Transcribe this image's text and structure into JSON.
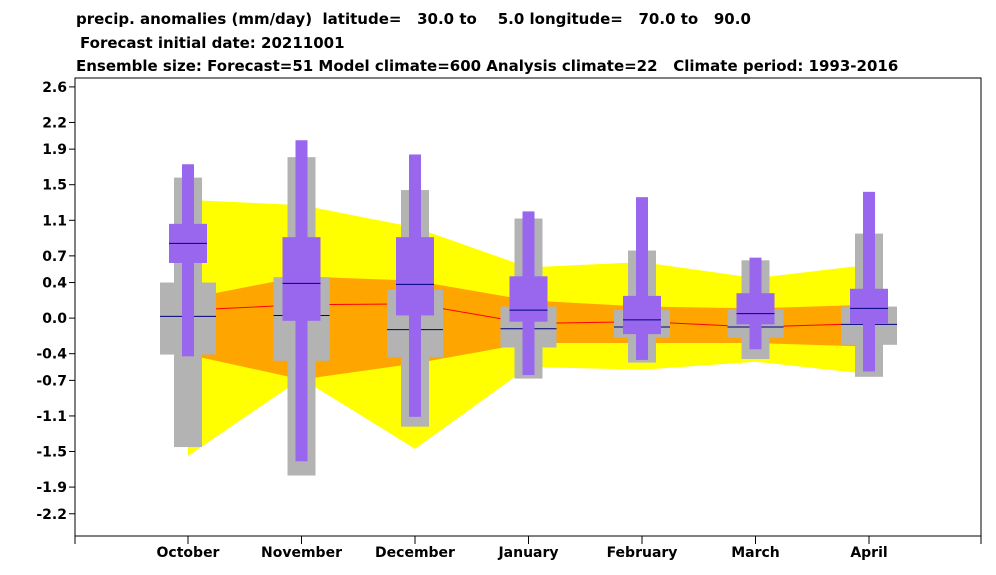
{
  "title_lines": [
    "precip. anomalies (mm/day)  latitude=   30.0 to    5.0 longitude=   70.0 to   90.0",
    "Forecast initial date: 20211001",
    "Ensemble size: Forecast=51 Model climate=600 Analysis climate=22   Climate period: 1993-2016"
  ],
  "chart_data": {
    "type": "box",
    "categories": [
      "October",
      "November",
      "December",
      "January",
      "February",
      "March",
      "April"
    ],
    "y_ticks": [
      "2.6",
      "2.2",
      "1.9",
      "1.5",
      "1.1",
      "0.7",
      "0.4",
      "0.0",
      "-0.4",
      "-0.7",
      "-1.1",
      "-1.5",
      "-1.9",
      "-2.2"
    ],
    "y_tick_values": [
      2.6,
      2.2,
      1.9,
      1.5,
      1.1,
      0.7,
      0.4,
      0.0,
      -0.4,
      -0.7,
      -1.1,
      -1.5,
      -1.9,
      -2.2
    ],
    "ylim": [
      -2.45,
      2.7
    ],
    "model_climate_band_outer": {
      "upper": [
        1.33,
        1.27,
        1.02,
        0.57,
        0.63,
        0.45,
        0.6
      ],
      "lower": [
        -1.55,
        -0.68,
        -1.47,
        -0.55,
        -0.58,
        -0.49,
        -0.63
      ]
    },
    "model_climate_band_inner": {
      "upper": [
        0.22,
        0.47,
        0.42,
        0.2,
        0.13,
        0.11,
        0.15
      ],
      "lower": [
        -0.41,
        -0.69,
        -0.51,
        -0.28,
        -0.28,
        -0.28,
        -0.32
      ]
    },
    "model_climate_median": [
      0.09,
      0.15,
      0.16,
      -0.06,
      -0.04,
      -0.1,
      -0.06
    ],
    "analysis_climate": {
      "upper_whisker": [
        1.58,
        1.81,
        1.44,
        1.12,
        0.76,
        0.65,
        0.95
      ],
      "box_top": [
        0.4,
        0.46,
        0.32,
        0.13,
        0.09,
        0.1,
        0.13
      ],
      "box_bottom": [
        -0.41,
        -0.48,
        -0.44,
        -0.33,
        -0.22,
        -0.22,
        -0.3
      ],
      "lower_whisker": [
        -1.45,
        -1.77,
        -1.22,
        -0.68,
        -0.5,
        -0.46,
        -0.66
      ],
      "median": [
        0.02,
        0.03,
        -0.13,
        -0.12,
        -0.1,
        -0.1,
        -0.07
      ]
    },
    "forecast": {
      "upper_whisker": [
        1.73,
        2.0,
        1.84,
        1.2,
        1.36,
        0.68,
        1.42
      ],
      "box_top": [
        1.06,
        0.91,
        0.91,
        0.47,
        0.25,
        0.28,
        0.33
      ],
      "box_bottom": [
        0.62,
        -0.03,
        0.03,
        -0.04,
        -0.18,
        -0.07,
        -0.06
      ],
      "lower_whisker": [
        -0.43,
        -1.61,
        -1.11,
        -0.64,
        -0.47,
        -0.35,
        -0.6
      ],
      "median": [
        0.84,
        0.39,
        0.38,
        0.09,
        -0.02,
        0.05,
        0.11
      ]
    },
    "colors": {
      "outer_band": "#ffff00",
      "inner_band": "#ffa500",
      "analysis_box": "#b3b3b3",
      "forecast_box": "#9966ee",
      "model_median_line": "#ff0000",
      "median_tick": "#000080"
    }
  }
}
